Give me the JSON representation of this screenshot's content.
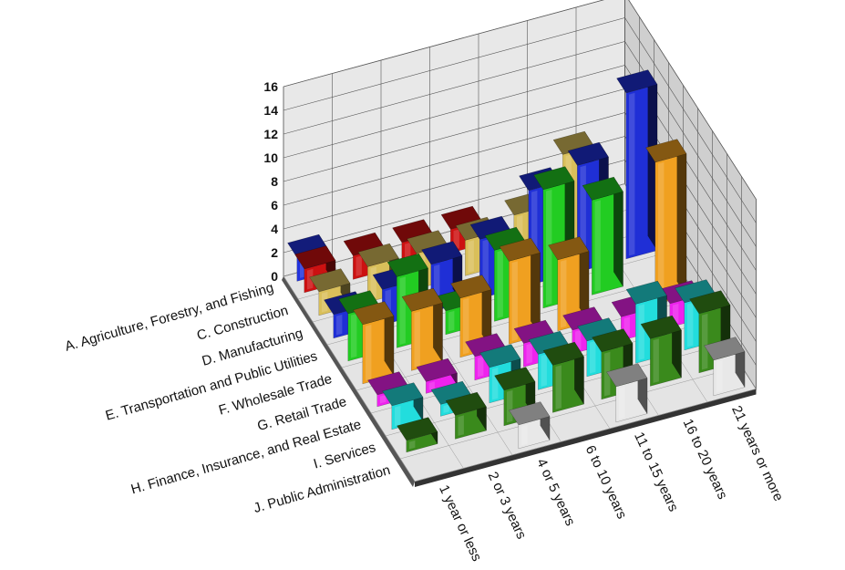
{
  "chart_data": {
    "type": "bar",
    "title": "",
    "xlabel": "",
    "ylabel": "",
    "ylim": [
      0,
      16
    ],
    "yticks": [
      0,
      2,
      4,
      6,
      8,
      10,
      12,
      14,
      16
    ],
    "grid": true,
    "categories": [
      "1 year or less",
      "2 or 3 years",
      "4 or 5 years",
      "6 to 10 years",
      "11 to 15 years",
      "16 to 20 years",
      "21 years or more"
    ],
    "series": [
      {
        "name": "A. Agriculture, Forestry, and Fishing",
        "color": "#cc1111",
        "values": [
          2,
          2,
          2,
          2,
          0,
          0,
          0
        ]
      },
      {
        "name": "C. Construction",
        "color": "#d9bf5a",
        "values": [
          2,
          3,
          3,
          3,
          4,
          8,
          0
        ]
      },
      {
        "name": "D. Manufacturing",
        "color": "#1f2fd6",
        "values": [
          2,
          3,
          4,
          5,
          8,
          9,
          14
        ]
      },
      {
        "name": "E. Transportation and Public Utilities",
        "color": "#22cc22",
        "values": [
          4,
          6,
          2,
          6,
          10,
          8,
          0
        ]
      },
      {
        "name": "F. Wholesale Trade",
        "color": "#f0a020",
        "values": [
          5,
          5,
          5,
          7,
          6,
          0,
          12
        ]
      },
      {
        "name": "G. Retail Trade",
        "color": "#ee22ee",
        "values": [
          1,
          1,
          2,
          2,
          2,
          2,
          2
        ]
      },
      {
        "name": "H. Finance, Insurance, and Real Estate",
        "color": "#22dddd",
        "values": [
          2,
          1,
          3,
          3,
          3,
          5,
          4
        ]
      },
      {
        "name": "I. Services",
        "color": "#3a8a1c",
        "values": [
          1,
          2,
          3,
          4,
          4,
          4,
          5
        ]
      },
      {
        "name": "J. Public Administration",
        "color": "#e8e8e8",
        "values": [
          0,
          0,
          2,
          0,
          3,
          0,
          3
        ]
      },
      {
        "name": "",
        "color": "#2233dd",
        "values": [
          2,
          0,
          0,
          0,
          0,
          0,
          0
        ]
      }
    ],
    "series_labels": [
      "A. Agriculture, Forestry, and Fishing",
      "C. Construction",
      "D. Manufacturing",
      "E. Transportation and Public Utilities",
      "F. Wholesale Trade",
      "G. Retail Trade",
      "H. Finance, Insurance, and Real Estate",
      "I. Services",
      "J. Public Administration"
    ]
  }
}
